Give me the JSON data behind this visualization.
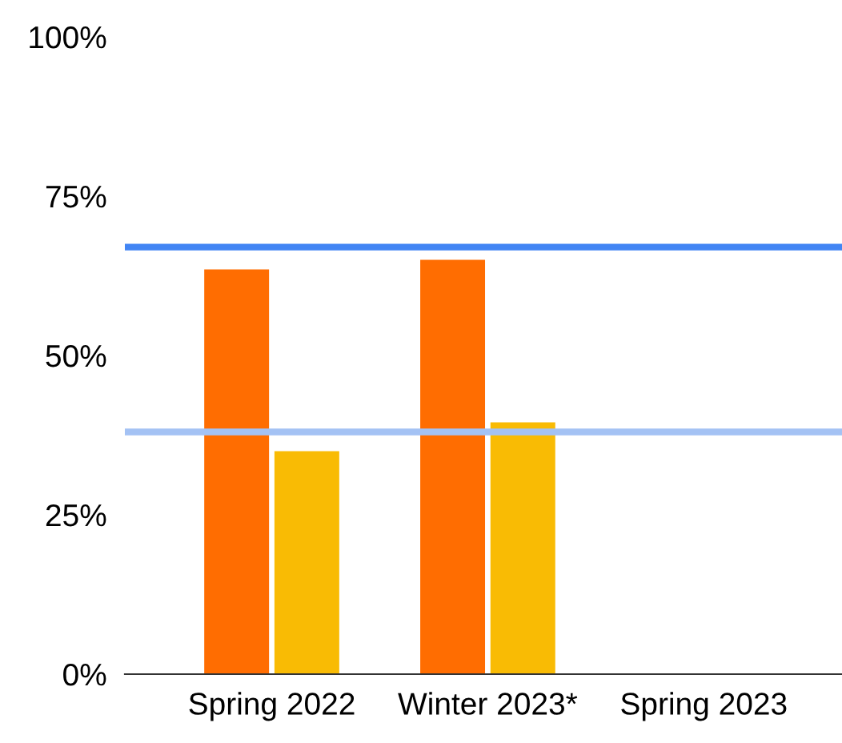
{
  "chart_data": {
    "type": "bar",
    "categories": [
      "Spring 2022",
      "Winter 2023*",
      "Spring 2023"
    ],
    "series": [
      {
        "color": "#ff6d01",
        "values": [
          63.5,
          65,
          null
        ]
      },
      {
        "color": "#f9bb04",
        "values": [
          35,
          39.5,
          null
        ]
      }
    ],
    "ylim": [
      0,
      100
    ],
    "yticks": [
      {
        "value": 0,
        "label": "0%"
      },
      {
        "value": 25,
        "label": "25%"
      },
      {
        "value": 50,
        "label": "50%"
      },
      {
        "value": 75,
        "label": "75%"
      },
      {
        "value": 100,
        "label": "100%"
      }
    ],
    "ref_lines": [
      {
        "axis": "y",
        "value": 67,
        "color": "#4285f4"
      },
      {
        "axis": "y",
        "value": 38,
        "color": "#a4c2f4"
      }
    ],
    "grid": false,
    "legend": false
  }
}
